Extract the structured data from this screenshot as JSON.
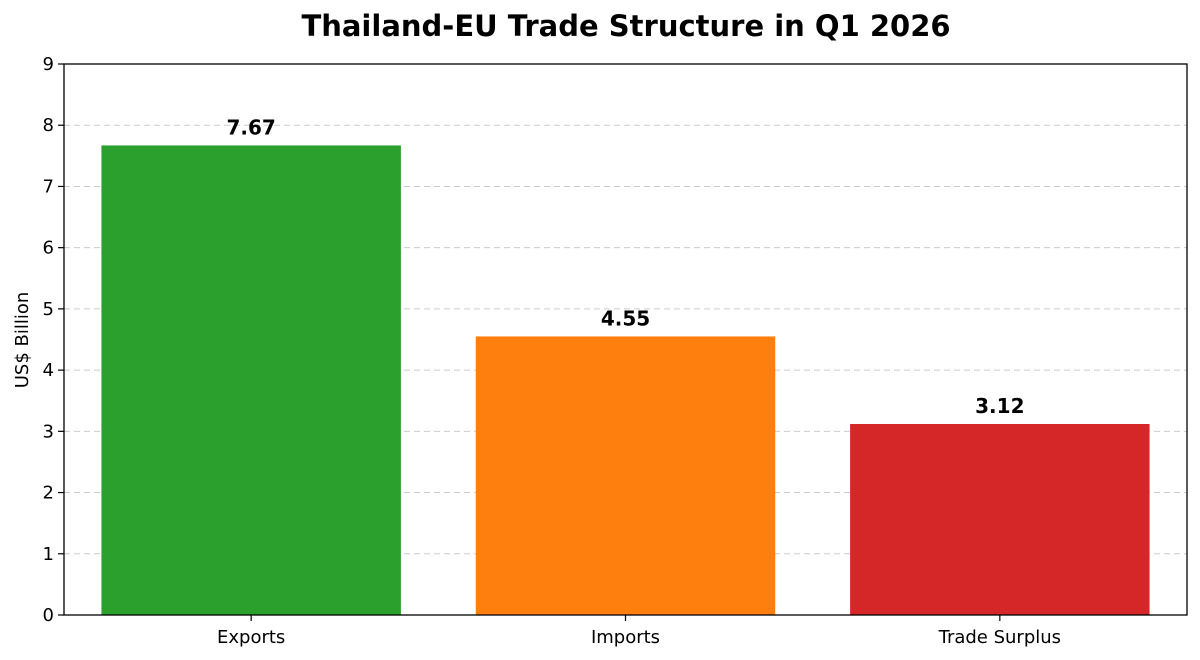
{
  "chart_data": {
    "type": "bar",
    "title": "Thailand-EU Trade Structure in Q1 2026",
    "xlabel": "",
    "ylabel": "US$ Billion",
    "categories": [
      "Exports",
      "Imports",
      "Trade Surplus"
    ],
    "values": [
      7.67,
      4.55,
      3.12
    ],
    "data_labels": [
      "7.67",
      "4.55",
      "3.12"
    ],
    "colors": [
      "#2ca02c",
      "#ff7f0e",
      "#d62728"
    ],
    "ylim": [
      0,
      9
    ],
    "yticks": [
      0,
      1,
      2,
      3,
      4,
      5,
      6,
      7,
      8,
      9
    ],
    "grid": "y-dashed",
    "legend": "none"
  }
}
